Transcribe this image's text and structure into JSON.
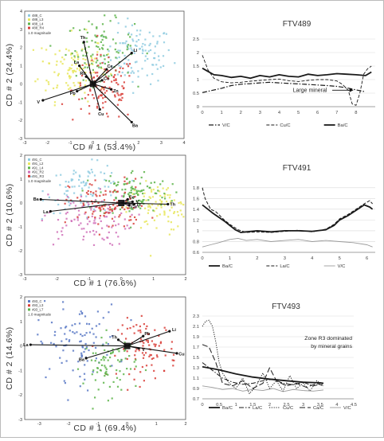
{
  "colors": {
    "ink": "#222222",
    "grid": "#d9d9d9",
    "frame": "#bbbbbb",
    "light_grey": "#9a9a9a",
    "cyan": "#8fcbe0",
    "yellow": "#e8e65a",
    "green": "#5db44a",
    "red": "#d9403a",
    "blue": "#5a79c6",
    "magenta": "#d070b8"
  },
  "chart_data": [
    {
      "id": "cda1",
      "type": "scatter",
      "xlabel": "CD # 1 (53.4%)",
      "ylabel": "CD # 2 (24.4%)",
      "xlim": [
        -3,
        4
      ],
      "ylim": [
        -3,
        4
      ],
      "xticks": [
        "-3",
        "-2",
        "-1",
        "0",
        "1",
        "2",
        "3",
        "4"
      ],
      "yticks": [
        "-3",
        "-2",
        "-1",
        "0",
        "1",
        "2",
        "3",
        "4"
      ],
      "magnitude_label": "1.0 magnitude",
      "series": [
        {
          "name": "488_C",
          "color": "#8fcbe0",
          "center": [
            2.0,
            1.6
          ],
          "spread": [
            0.75,
            0.8
          ],
          "count": 110
        },
        {
          "name": "488_L3",
          "color": "#e8e65a",
          "center": [
            -0.9,
            0.9
          ],
          "spread": [
            0.75,
            0.9
          ],
          "count": 110
        },
        {
          "name": "488_L4",
          "color": "#5db44a",
          "center": [
            0.3,
            1.9
          ],
          "spread": [
            0.75,
            0.8
          ],
          "count": 100
        },
        {
          "name": "488_R4",
          "color": "#d9403a",
          "center": [
            0.5,
            -0.3
          ],
          "spread": [
            0.7,
            0.9
          ],
          "count": 110
        }
      ],
      "loadings": [
        {
          "label": "Th",
          "end": [
            -0.4,
            2.3
          ]
        },
        {
          "label": "Li",
          "end": [
            1.7,
            1.7
          ]
        },
        {
          "label": "V",
          "end": [
            -2.2,
            -0.9
          ]
        },
        {
          "label": "Ba",
          "end": [
            1.7,
            -2.1
          ]
        },
        {
          "label": "La",
          "end": [
            -0.6,
            1.0
          ]
        },
        {
          "label": "Ce",
          "end": [
            0.6,
            0.8
          ]
        },
        {
          "label": "Zn",
          "end": [
            0.8,
            -0.3
          ]
        },
        {
          "label": "Cu",
          "end": [
            0.3,
            -1.4
          ]
        },
        {
          "label": "Pb",
          "end": [
            -0.7,
            -0.4
          ]
        },
        {
          "label": "Rb",
          "end": [
            -0.3,
            0.4
          ]
        },
        {
          "label": "Co",
          "end": [
            0.4,
            0.2
          ]
        }
      ]
    },
    {
      "id": "cda2",
      "type": "scatter",
      "xlabel": "CD # 1 (76.6%)",
      "ylabel": "CD # 2 (10.6%)",
      "xlim": [
        -3,
        2
      ],
      "ylim": [
        -3,
        2
      ],
      "xticks": [
        "-3",
        "-2",
        "-1",
        "0",
        "1",
        "2"
      ],
      "yticks": [
        "-3",
        "-2",
        "-1",
        "0",
        "1",
        "2"
      ],
      "magnitude_label": "1.0 magnitude",
      "series": [
        {
          "name": "491_C",
          "color": "#8fcbe0",
          "center": [
            -1.1,
            0.6
          ],
          "spread": [
            0.6,
            0.5
          ],
          "count": 90
        },
        {
          "name": "491_L2",
          "color": "#e8e65a",
          "center": [
            1.2,
            -0.2
          ],
          "spread": [
            0.5,
            0.5
          ],
          "count": 90
        },
        {
          "name": "491_L4",
          "color": "#5db44a",
          "center": [
            0.4,
            0.4
          ],
          "spread": [
            0.55,
            0.5
          ],
          "count": 110
        },
        {
          "name": "491_R2",
          "color": "#d070b8",
          "center": [
            -1.1,
            -0.7
          ],
          "spread": [
            0.7,
            0.55
          ],
          "count": 100
        },
        {
          "name": "491_R3",
          "color": "#d9403a",
          "center": [
            -0.4,
            -0.1
          ],
          "spread": [
            0.6,
            0.55
          ],
          "count": 100
        }
      ],
      "loadings": [
        {
          "label": "Ba",
          "end": [
            -2.5,
            0.15
          ]
        },
        {
          "label": "La",
          "end": [
            -2.2,
            -0.35
          ]
        },
        {
          "label": "Th",
          "end": [
            1.45,
            -0.05
          ]
        },
        {
          "label": "V",
          "end": [
            0.35,
            0.05
          ]
        },
        {
          "label": "Ce",
          "end": [
            0.2,
            0.15
          ]
        },
        {
          "label": "Cu",
          "end": [
            0.25,
            -0.1
          ]
        },
        {
          "label": "Li",
          "end": [
            0.4,
            -0.05
          ]
        }
      ]
    },
    {
      "id": "cda3",
      "type": "scatter",
      "xlabel": "CD # 1 (69.4%)",
      "ylabel": "CD # 2 (14.6%)",
      "xlim": [
        -3.5,
        2
      ],
      "ylim": [
        -3,
        2
      ],
      "xticks": [
        "-3",
        "-2",
        "-1",
        "0",
        "1",
        "2"
      ],
      "yticks": [
        "-3",
        "-2",
        "-1",
        "0",
        "1",
        "2"
      ],
      "magnitude_label": "1.0 magnitude",
      "series": [
        {
          "name": "493_C",
          "color": "#5a79c6",
          "center": [
            -1.7,
            0.15
          ],
          "spread": [
            0.7,
            0.75
          ],
          "count": 100
        },
        {
          "name": "493_L3",
          "color": "#d9403a",
          "center": [
            0.7,
            -0.1
          ],
          "spread": [
            0.5,
            0.6
          ],
          "count": 90
        },
        {
          "name": "493_L7",
          "color": "#5db44a",
          "center": [
            -0.6,
            -0.8
          ],
          "spread": [
            0.45,
            0.6
          ],
          "count": 80
        }
      ],
      "loadings": [
        {
          "label": "La",
          "end": [
            -3.3,
            0.05
          ]
        },
        {
          "label": "Ba",
          "end": [
            -1.4,
            -0.5
          ]
        },
        {
          "label": "Li",
          "end": [
            1.45,
            0.6
          ]
        },
        {
          "label": "Pb",
          "end": [
            0.55,
            0.4
          ]
        },
        {
          "label": "Cu",
          "end": [
            1.7,
            -0.3
          ]
        },
        {
          "label": "Th",
          "end": [
            -0.3,
            0.25
          ]
        },
        {
          "label": "V",
          "end": [
            0.4,
            -0.1
          ]
        }
      ]
    },
    {
      "id": "ftv489",
      "type": "line",
      "title": "FTV489",
      "xlim": [
        0,
        9
      ],
      "ylim": [
        0,
        2.5
      ],
      "xticks": [
        "0",
        "1",
        "2",
        "3",
        "4",
        "5",
        "6",
        "7",
        "8"
      ],
      "yticks": [
        "0",
        "0.5",
        "1",
        "1.5",
        "2",
        "2.5"
      ],
      "annotation": "Large mineral",
      "series": [
        {
          "name": "V/C",
          "style": "dashdot",
          "width": 1.2,
          "x": [
            0,
            0.5,
            1,
            1.5,
            2,
            2.5,
            3,
            3.5,
            4,
            4.5,
            5,
            5.5,
            6,
            6.5,
            7,
            7.5,
            8,
            8.5
          ],
          "values": [
            0.52,
            0.6,
            0.68,
            0.78,
            0.83,
            0.85,
            0.88,
            0.9,
            0.88,
            0.86,
            0.84,
            0.82,
            0.8,
            0.78,
            0.75,
            0.7,
            0.62,
            0.55
          ]
        },
        {
          "name": "Cu/C",
          "style": "dashed",
          "width": 0.9,
          "x": [
            0,
            0.3,
            0.6,
            1,
            1.5,
            2,
            2.5,
            3,
            3.5,
            4,
            4.5,
            5,
            5.5,
            6,
            6.5,
            7,
            7.3,
            7.6,
            7.8,
            8,
            8.2,
            8.4,
            8.6,
            8.8
          ],
          "values": [
            1.9,
            1.35,
            1.05,
            0.92,
            0.88,
            0.9,
            0.94,
            0.97,
            1.0,
            1.02,
            0.96,
            0.93,
            0.97,
            1.0,
            1.0,
            0.95,
            0.82,
            0.6,
            0.1,
            0.05,
            0.5,
            1.2,
            1.4,
            1.5
          ]
        },
        {
          "name": "Ba/C",
          "style": "solid",
          "width": 1.8,
          "x": [
            0,
            0.3,
            0.6,
            1,
            1.5,
            2,
            2.5,
            3,
            3.5,
            4,
            4.5,
            5,
            5.5,
            6,
            6.5,
            7,
            7.5,
            8,
            8.5,
            8.8
          ],
          "values": [
            1.42,
            1.3,
            1.18,
            1.15,
            1.08,
            1.12,
            1.05,
            1.15,
            1.1,
            1.18,
            1.12,
            1.1,
            1.2,
            1.15,
            1.18,
            1.22,
            1.2,
            1.18,
            1.15,
            1.28
          ]
        }
      ]
    },
    {
      "id": "ftv491",
      "type": "line",
      "title": "FTV491",
      "xlim": [
        0,
        6.3
      ],
      "ylim": [
        0.6,
        1.9
      ],
      "xticks": [
        "0",
        "1",
        "2",
        "3",
        "4",
        "5",
        "6"
      ],
      "yticks": [
        "0.6",
        "0.8",
        "1",
        "1.2",
        "1.4",
        "1.6",
        "1.8"
      ],
      "series": [
        {
          "name": "Ba/C",
          "style": "solid",
          "width": 1.8,
          "x": [
            0,
            0.2,
            0.4,
            0.6,
            0.8,
            1,
            1.2,
            1.4,
            1.6,
            2,
            2.5,
            3,
            3.5,
            4,
            4.5,
            4.8,
            5,
            5.3,
            5.6,
            5.9,
            6.1,
            6.2
          ],
          "values": [
            1.48,
            1.4,
            1.32,
            1.25,
            1.18,
            1.1,
            1.02,
            0.97,
            0.98,
            1.0,
            0.98,
            1.0,
            1.0,
            0.99,
            1.02,
            1.1,
            1.2,
            1.28,
            1.38,
            1.48,
            1.44,
            1.4
          ]
        },
        {
          "name": "La/C",
          "style": "dashed",
          "width": 1.0,
          "x": [
            0,
            0.1,
            0.3,
            0.5,
            0.8,
            1,
            1.3,
            1.6,
            2,
            2.5,
            3,
            3.5,
            4,
            4.5,
            4.8,
            5,
            5.3,
            5.6,
            5.9,
            6.1,
            6.2
          ],
          "values": [
            1.8,
            1.6,
            1.4,
            1.35,
            1.2,
            1.12,
            1.02,
            0.97,
            0.98,
            0.97,
            0.99,
            1.01,
            0.98,
            1.03,
            1.12,
            1.22,
            1.3,
            1.4,
            1.5,
            1.56,
            1.5
          ]
        },
        {
          "name": "V/C",
          "style": "solid",
          "width": 0.9,
          "light": true,
          "x": [
            0,
            0.3,
            0.6,
            1,
            1.3,
            1.6,
            2,
            2.5,
            3,
            3.5,
            4,
            4.5,
            5,
            5.5,
            6,
            6.2
          ],
          "values": [
            0.7,
            0.74,
            0.78,
            0.84,
            0.86,
            0.82,
            0.84,
            0.8,
            0.82,
            0.84,
            0.8,
            0.82,
            0.8,
            0.78,
            0.74,
            0.7
          ]
        }
      ]
    },
    {
      "id": "ftv493",
      "type": "line",
      "title": "FTV493",
      "xlim": [
        0,
        4.5
      ],
      "ylim": [
        0.7,
        2.3
      ],
      "xticks": [
        "0",
        "0.5",
        "1",
        "1.5",
        "2",
        "2.5",
        "3",
        "3.5",
        "4",
        "4.5"
      ],
      "yticks": [
        "0.7",
        "0.9",
        "1.1",
        "1.3",
        "1.5",
        "1.7",
        "1.9",
        "2.1",
        "2.3"
      ],
      "annotation": [
        "Zone R3 dominated",
        "by mineral grains"
      ],
      "series": [
        {
          "name": "Ba/C",
          "style": "solid",
          "width": 1.8,
          "x": [
            0,
            0.5,
            1,
            1.5,
            2,
            2.5,
            3,
            3.5,
            3.6
          ],
          "values": [
            1.32,
            1.26,
            1.18,
            1.12,
            1.08,
            1.05,
            1.02,
            1.01,
            1.0
          ]
        },
        {
          "name": "La/C",
          "style": "dashdot",
          "width": 1.0,
          "x": [
            0,
            0.3,
            0.6,
            0.9,
            1.2,
            1.5,
            1.8,
            2.1,
            2.4,
            2.7,
            3.0,
            3.3,
            3.6
          ],
          "values": [
            1.4,
            1.25,
            1.1,
            1.02,
            0.98,
            1.0,
            1.05,
            1.08,
            1.0,
            0.97,
            1.02,
            0.95,
            1.0
          ]
        },
        {
          "name": "Cu/C",
          "style": "dotted",
          "width": 1.0,
          "x": [
            0,
            0.1,
            0.2,
            0.3,
            0.4,
            0.5,
            0.6,
            0.8,
            1.0,
            1.2,
            1.4,
            1.6,
            1.8,
            2.0,
            2.2,
            2.4,
            2.6,
            2.8,
            3.0,
            3.2,
            3.4,
            3.6
          ],
          "values": [
            2.1,
            2.2,
            2.22,
            2.1,
            1.8,
            1.4,
            1.2,
            1.0,
            0.9,
            1.1,
            0.8,
            0.95,
            1.2,
            0.9,
            1.05,
            0.85,
            1.15,
            0.9,
            1.0,
            0.85,
            1.05,
            0.95
          ]
        },
        {
          "name": "Ca/C",
          "style": "longdash",
          "width": 1.0,
          "x": [
            0,
            0.2,
            0.4,
            0.6,
            0.9,
            1.2,
            1.5,
            1.8,
            2.0,
            2.2,
            2.5,
            2.8,
            3.1,
            3.4,
            3.6
          ],
          "values": [
            1.75,
            1.7,
            1.4,
            1.0,
            0.95,
            1.05,
            0.9,
            1.0,
            1.3,
            1.05,
            0.95,
            1.0,
            0.92,
            1.0,
            0.95
          ]
        },
        {
          "name": "V/C",
          "style": "solid",
          "width": 0.9,
          "light": true,
          "x": [
            0,
            0.3,
            0.6,
            0.9,
            1.2,
            1.5,
            1.8,
            2.1,
            2.4,
            2.7,
            3.0,
            3.3,
            3.6
          ],
          "values": [
            0.95,
            0.92,
            0.88,
            0.9,
            0.85,
            0.88,
            0.86,
            0.9,
            0.84,
            0.88,
            0.86,
            0.85,
            0.87
          ]
        }
      ]
    }
  ]
}
